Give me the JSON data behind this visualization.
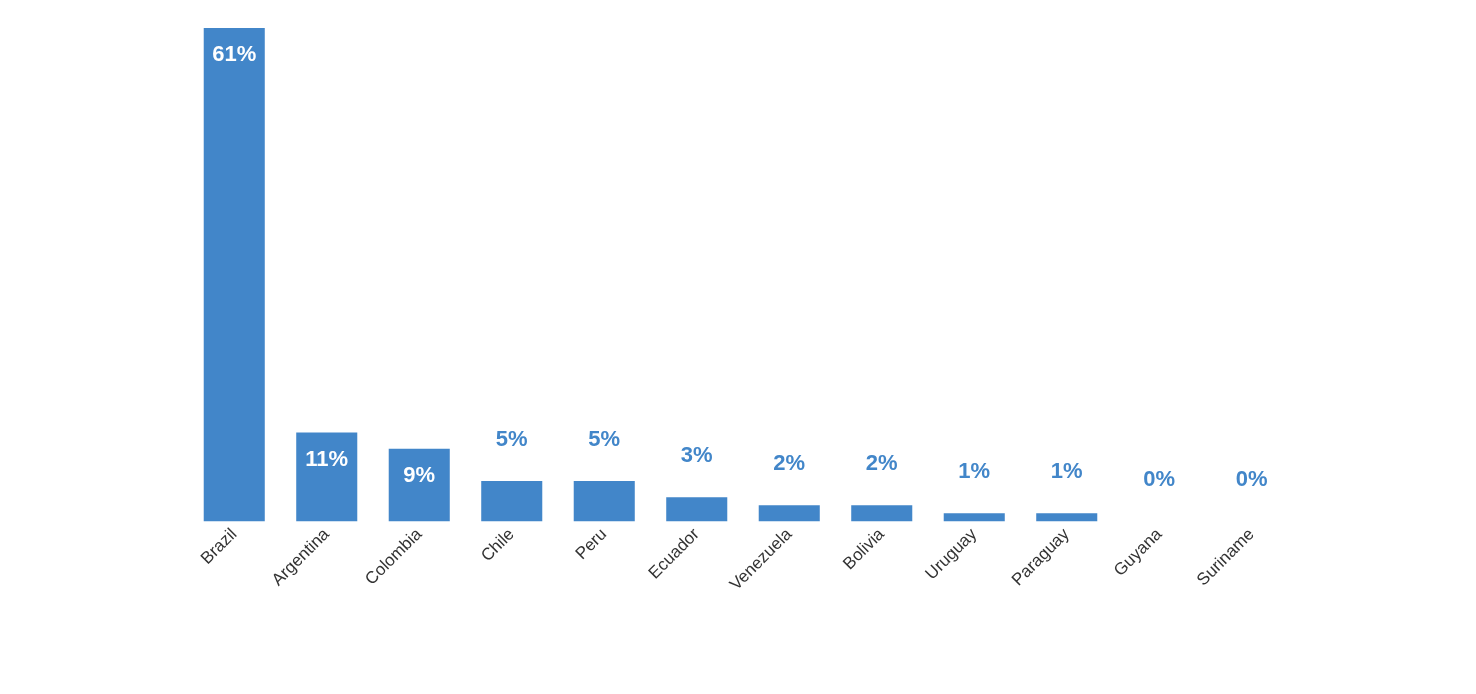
{
  "chart_data": {
    "type": "bar",
    "categories": [
      "Brazil",
      "Argentina",
      "Colombia",
      "Chile",
      "Peru",
      "Ecuador",
      "Venezuela",
      "Bolivia",
      "Uruguay",
      "Paraguay",
      "Guyana",
      "Suriname"
    ],
    "values": [
      61,
      11,
      9,
      5,
      5,
      3,
      2,
      2,
      1,
      1,
      0,
      0
    ],
    "value_labels": [
      "61%",
      "11%",
      "9%",
      "5%",
      "5%",
      "3%",
      "2%",
      "2%",
      "1%",
      "1%",
      "0%",
      "0%"
    ],
    "color": "#4286c9",
    "grid": false,
    "legend": false
  }
}
